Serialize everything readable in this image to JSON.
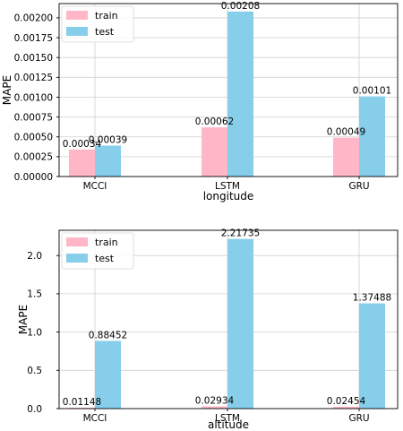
{
  "colors": {
    "train": "#FFB6C6",
    "test": "#87CEEB"
  },
  "chart_data": [
    {
      "type": "bar",
      "categories": [
        "MCCI",
        "LSTM",
        "GRU"
      ],
      "series": [
        {
          "name": "train",
          "values": [
            0.00034,
            0.00062,
            0.00049
          ],
          "labels": [
            "0.00034",
            "0.00062",
            "0.00049"
          ]
        },
        {
          "name": "test",
          "values": [
            0.00039,
            0.00208,
            0.00101
          ],
          "labels": [
            "0.00039",
            "0.00208",
            "0.00101"
          ]
        }
      ],
      "xlabel": "longitude",
      "ylabel": "MAPE",
      "ylim": [
        0,
        0.00218
      ],
      "yticks": [
        0.0,
        0.00025,
        0.0005,
        0.00075,
        0.001,
        0.00125,
        0.0015,
        0.00175,
        0.002
      ],
      "ytick_labels": [
        "0.00000",
        "0.00025",
        "0.00050",
        "0.00075",
        "0.00100",
        "0.00125",
        "0.00150",
        "0.00175",
        "0.00200"
      ],
      "grid": true,
      "legend": "top-left"
    },
    {
      "type": "bar",
      "categories": [
        "MCCI",
        "LSTM",
        "GRU"
      ],
      "series": [
        {
          "name": "train",
          "values": [
            0.01148,
            0.02934,
            0.02454
          ],
          "labels": [
            "0.01148",
            "0.02934",
            "0.02454"
          ]
        },
        {
          "name": "test",
          "values": [
            0.88452,
            2.21735,
            1.37488
          ],
          "labels": [
            "0.88452",
            "2.21735",
            "1.37488"
          ]
        }
      ],
      "xlabel": "altitude",
      "ylabel": "MAPE",
      "ylim": [
        0,
        2.33
      ],
      "yticks": [
        0.0,
        0.5,
        1.0,
        1.5,
        2.0
      ],
      "ytick_labels": [
        "0.0",
        "0.5",
        "1.0",
        "1.5",
        "2.0"
      ],
      "grid": true,
      "legend": "top-left"
    }
  ]
}
